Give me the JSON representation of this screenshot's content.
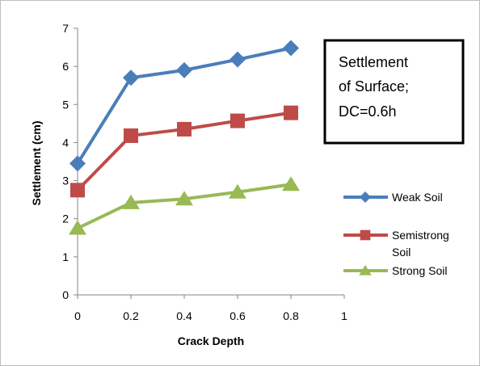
{
  "chart_data": {
    "type": "line",
    "title": "",
    "xlabel": "Crack Depth",
    "ylabel": "Settlement (cm)",
    "xlim": [
      0,
      1
    ],
    "ylim": [
      0,
      7
    ],
    "x_ticks": [
      "0",
      "0.2",
      "0.4",
      "0.6",
      "0.8",
      "1"
    ],
    "y_ticks": [
      "0",
      "1",
      "2",
      "3",
      "4",
      "5",
      "6",
      "7"
    ],
    "x": [
      0,
      0.2,
      0.4,
      0.6,
      0.8
    ],
    "series": [
      {
        "name": "Weak Soil",
        "name_lines": [
          "Weak Soil"
        ],
        "values": [
          3.45,
          5.7,
          5.9,
          6.18,
          6.48
        ],
        "color": "#4a7ebb",
        "marker": "diamond"
      },
      {
        "name": "Semistrong Soil",
        "name_lines": [
          "Semistrong",
          "Soil"
        ],
        "values": [
          2.75,
          4.18,
          4.35,
          4.57,
          4.78
        ],
        "color": "#be4b48",
        "marker": "square"
      },
      {
        "name": "Strong Soil",
        "name_lines": [
          "Strong Soil"
        ],
        "values": [
          1.75,
          2.42,
          2.52,
          2.7,
          2.9
        ],
        "color": "#98b954",
        "marker": "triangle"
      }
    ],
    "annotation": {
      "lines": [
        "Settlement",
        "of Surface;",
        "DC=0.6h"
      ]
    },
    "grid": false,
    "legend_position": "right"
  }
}
